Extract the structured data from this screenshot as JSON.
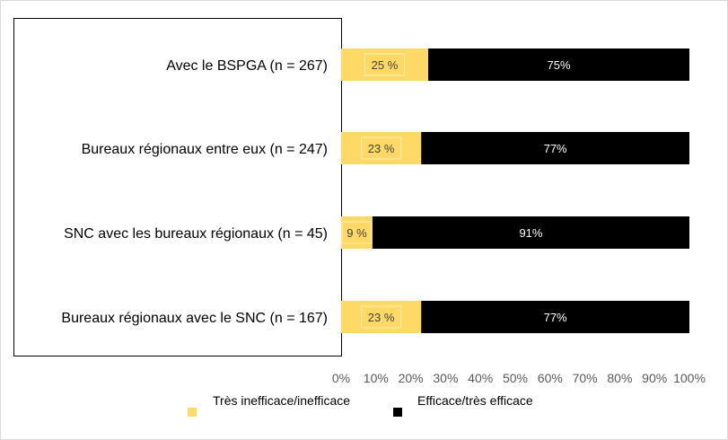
{
  "chart_data": {
    "type": "bar",
    "orientation": "horizontal",
    "stacked": true,
    "categories": [
      "Avec le BSPGA (n = 267)",
      "Bureaux régionaux entre eux (n = 247)",
      "SNC avec les bureaux régionaux (n = 45)",
      "Bureaux régionaux avec le SNC (n = 167)"
    ],
    "series": [
      {
        "name": "Très inefficace/inefficace",
        "color": "#FFD966",
        "values": [
          25,
          23,
          9,
          23
        ],
        "labels": [
          "25 %",
          "23 %",
          "9 %",
          "23 %"
        ]
      },
      {
        "name": "Efficace/très efficace",
        "color": "#000000",
        "values": [
          75,
          77,
          91,
          77
        ],
        "labels": [
          "75%",
          "77%",
          "91%",
          "77%"
        ]
      }
    ],
    "xlim": [
      0,
      100
    ],
    "xticks": [
      "0%",
      "10%",
      "20%",
      "30%",
      "40%",
      "50%",
      "60%",
      "70%",
      "80%",
      "90%",
      "100%"
    ],
    "grid": false,
    "legend_position": "bottom"
  }
}
